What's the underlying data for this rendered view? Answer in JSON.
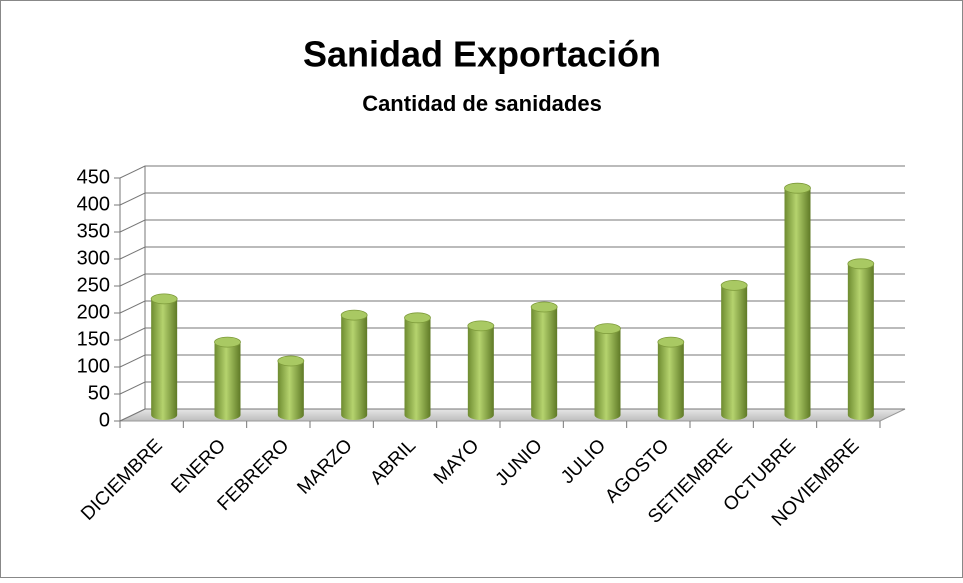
{
  "chart_data": {
    "type": "bar3d",
    "title": "Sanidad Exportación",
    "subtitle": "Cantidad de sanidades",
    "categories": [
      "DICIEMBRE",
      "ENERO",
      "FEBRERO",
      "MARZO",
      "ABRIL",
      "MAYO",
      "JUNIO",
      "JULIO",
      "AGOSTO",
      "SETIEMBRE",
      "OCTUBRE",
      "NOVIEMBRE"
    ],
    "values": [
      215,
      135,
      100,
      185,
      180,
      165,
      200,
      160,
      135,
      240,
      420,
      280
    ],
    "color": "#9bbb59",
    "ylim": [
      0,
      450
    ],
    "yticks": [
      0,
      50,
      100,
      150,
      200,
      250,
      300,
      350,
      400,
      450
    ],
    "grid": true
  }
}
